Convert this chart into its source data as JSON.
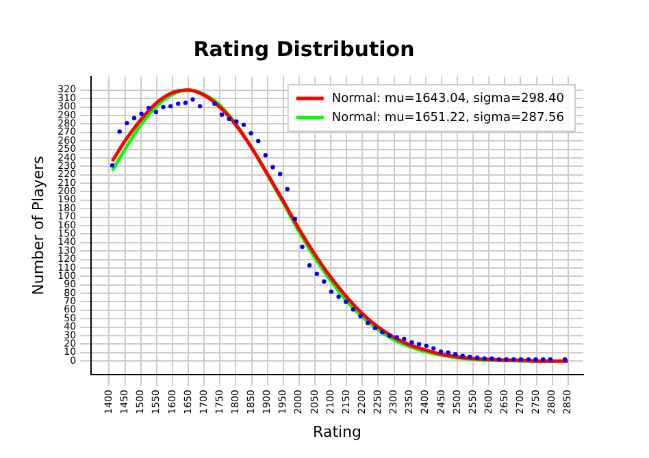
{
  "chart_data": {
    "type": "scatter",
    "title": "Rating Distribution",
    "xlabel": "Rating",
    "ylabel": "Number of Players",
    "xlim": [
      1343,
      2898
    ],
    "ylim": [
      -16,
      336
    ],
    "xticks": [
      1400,
      1450,
      1500,
      1550,
      1600,
      1650,
      1700,
      1750,
      1800,
      1850,
      1900,
      1950,
      2000,
      2050,
      2100,
      2150,
      2200,
      2250,
      2300,
      2350,
      2400,
      2450,
      2500,
      2550,
      2600,
      2650,
      2700,
      2750,
      2800,
      2850
    ],
    "yticks": [
      0,
      10,
      20,
      30,
      40,
      50,
      60,
      70,
      80,
      90,
      100,
      110,
      120,
      130,
      140,
      150,
      160,
      170,
      180,
      190,
      200,
      210,
      220,
      230,
      240,
      250,
      260,
      270,
      280,
      290,
      300,
      310,
      320
    ],
    "grid": true,
    "legend": "top right",
    "marker": "circle",
    "series": [
      {
        "type": "scatter",
        "color": "#0000ff",
        "x": [
          1410,
          1433,
          1456,
          1479,
          1502,
          1525,
          1548,
          1571,
          1594,
          1618,
          1641,
          1664,
          1687,
          1733,
          1756,
          1779,
          1802,
          1825,
          1848,
          1871,
          1894,
          1917,
          1940,
          1963,
          1987,
          2010,
          2033,
          2056,
          2079,
          2102,
          2125,
          2148,
          2171,
          2194,
          2217,
          2240,
          2263,
          2286,
          2309,
          2332,
          2356,
          2379,
          2402,
          2425,
          2448,
          2471,
          2494,
          2517,
          2540,
          2563,
          2586,
          2609,
          2632,
          2655,
          2678,
          2701,
          2725,
          2748,
          2771,
          2794,
          2840
        ],
        "values": [
          231,
          271,
          281,
          287,
          292,
          299,
          294,
          300,
          301,
          304,
          305,
          309,
          301,
          304,
          291,
          286,
          283,
          279,
          269,
          260,
          243,
          229,
          221,
          203,
          168,
          135,
          113,
          103,
          94,
          82,
          76,
          70,
          61,
          53,
          45,
          39,
          34,
          30,
          28,
          26,
          22,
          20,
          18,
          15,
          11,
          10,
          8,
          6,
          5,
          4,
          3,
          3,
          2,
          2,
          2,
          2,
          2,
          2,
          2,
          2,
          2
        ]
      },
      {
        "type": "line",
        "name": "Normal: mu=1643.04, sigma=298.40",
        "color": "#ff0000",
        "marker": "none",
        "x": [
          1410,
          1450,
          1500,
          1550,
          1600,
          1650,
          1700,
          1750,
          1800,
          1850,
          1900,
          1950,
          2000,
          2050,
          2100,
          2150,
          2200,
          2250,
          2300,
          2350,
          2400,
          2450,
          2500,
          2550,
          2600,
          2650,
          2700,
          2750,
          2800,
          2850
        ],
        "values": [
          236,
          260,
          285,
          305,
          317,
          320,
          314,
          300,
          279,
          252,
          221,
          189,
          156,
          126,
          99,
          76,
          56,
          40,
          28,
          19,
          13,
          8,
          5,
          3,
          2,
          1,
          1,
          0,
          0,
          0
        ]
      },
      {
        "type": "line",
        "name": "Normal: mu=1651.22, sigma=287.56",
        "color": "#00ff00",
        "marker": "none",
        "x": [
          1410,
          1450,
          1500,
          1550,
          1600,
          1650,
          1700,
          1750,
          1800,
          1850,
          1900,
          1950,
          2000,
          2050,
          2100,
          2150,
          2200,
          2250,
          2300,
          2350,
          2400,
          2450,
          2500,
          2550,
          2600,
          2650,
          2700,
          2750,
          2800,
          2850
        ],
        "values": [
          225,
          250,
          279,
          301,
          315,
          320,
          315,
          302,
          280,
          252,
          220,
          187,
          153,
          122,
          95,
          71,
          52,
          37,
          25,
          17,
          11,
          7,
          4,
          2,
          1,
          1,
          0,
          0,
          0,
          0
        ]
      }
    ]
  }
}
